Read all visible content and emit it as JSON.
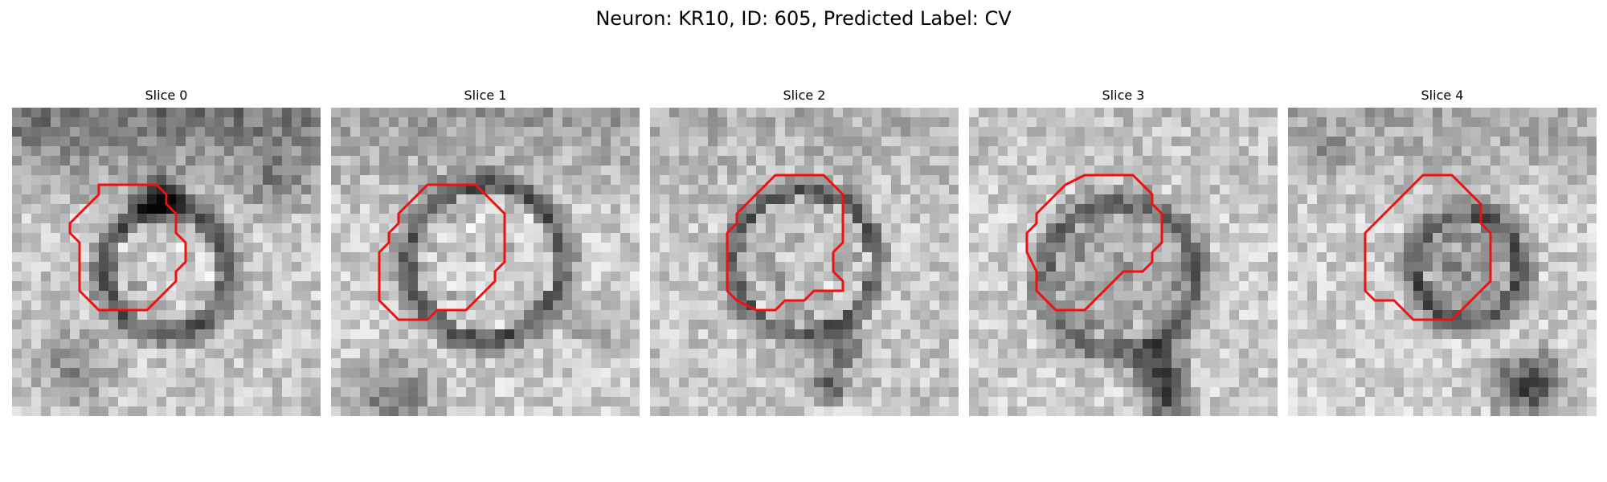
{
  "title": "Neuron: KR10, ID: 605, Predicted Label: CV",
  "contour_color": "#ee1111",
  "slices": [
    {
      "label": "Slice 0"
    },
    {
      "label": "Slice 1"
    },
    {
      "label": "Slice 2"
    },
    {
      "label": "Slice 3"
    },
    {
      "label": "Slice 4"
    }
  ]
}
